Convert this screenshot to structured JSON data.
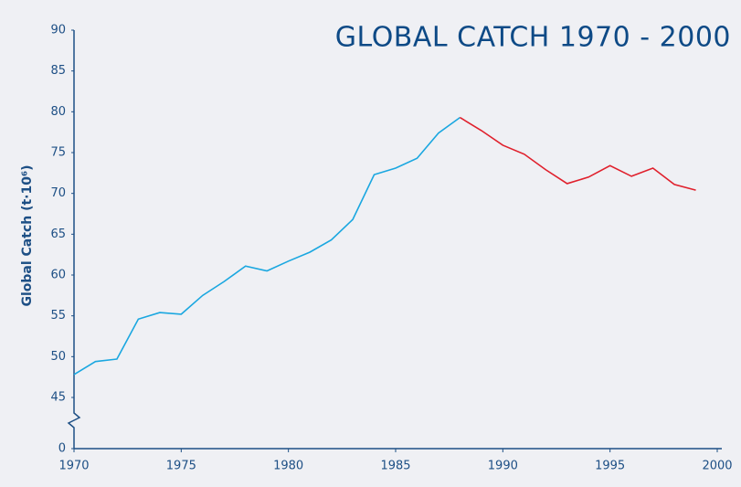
{
  "chart_data": {
    "type": "line",
    "title": "GLOBAL CATCH 1970 - 2000",
    "y_label": "Global Catch (t·10⁶)",
    "x": [
      1970,
      1971,
      1972,
      1973,
      1974,
      1975,
      1976,
      1977,
      1978,
      1979,
      1980,
      1981,
      1982,
      1983,
      1984,
      1985,
      1986,
      1987,
      1988,
      1989,
      1990,
      1991,
      1992,
      1993,
      1994,
      1995,
      1996,
      1997,
      1998,
      1999
    ],
    "series": [
      {
        "color": "#1aa7e0",
        "values": [
          47.8,
          49.4,
          49.7,
          54.6,
          55.4,
          55.2,
          57.5,
          59.2,
          61.1,
          60.5,
          61.7,
          62.8,
          64.3,
          66.8,
          72.3,
          73.1,
          74.3,
          77.4,
          79.3,
          null,
          null,
          null,
          null,
          null,
          null,
          null,
          null,
          null,
          null,
          null
        ]
      },
      {
        "color": "#e0202c",
        "values": [
          null,
          null,
          null,
          null,
          null,
          null,
          null,
          null,
          null,
          null,
          null,
          null,
          null,
          null,
          null,
          null,
          null,
          null,
          79.3,
          77.7,
          75.9,
          74.8,
          72.9,
          71.2,
          72.0,
          73.4,
          72.1,
          73.1,
          71.1,
          70.4
        ]
      }
    ],
    "xlim": [
      1970,
      2000
    ],
    "xticks": [
      1970,
      1975,
      1980,
      1985,
      1990,
      1995,
      2000
    ],
    "ylim": [
      0,
      90
    ],
    "yticks": [
      0,
      45,
      50,
      55,
      60,
      65,
      70,
      75,
      80,
      85,
      90
    ],
    "ybreak": [
      0,
      45
    ]
  }
}
